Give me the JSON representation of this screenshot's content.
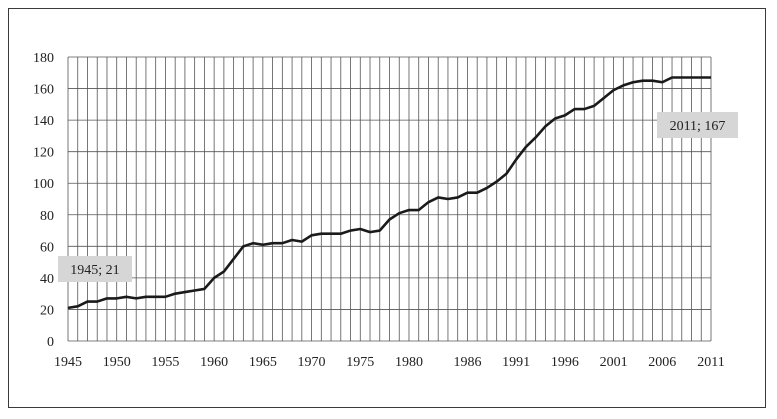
{
  "chart_data": {
    "type": "line",
    "title": "",
    "xlabel": "",
    "ylabel": "",
    "ylim": [
      0,
      180
    ],
    "xlim": [
      1945,
      2011
    ],
    "grid": true,
    "yticks": [
      0,
      20,
      40,
      60,
      80,
      100,
      120,
      140,
      160,
      180
    ],
    "xticks": [
      1945,
      1950,
      1955,
      1960,
      1965,
      1970,
      1975,
      1980,
      1986,
      1991,
      1996,
      2001,
      2006,
      2011
    ],
    "x": [
      1945,
      1946,
      1947,
      1948,
      1949,
      1950,
      1951,
      1952,
      1953,
      1954,
      1955,
      1956,
      1957,
      1958,
      1959,
      1960,
      1961,
      1962,
      1963,
      1964,
      1965,
      1966,
      1967,
      1968,
      1969,
      1970,
      1971,
      1972,
      1973,
      1974,
      1975,
      1976,
      1977,
      1978,
      1979,
      1980,
      1981,
      1982,
      1983,
      1984,
      1985,
      1986,
      1987,
      1988,
      1989,
      1990,
      1991,
      1992,
      1993,
      1994,
      1995,
      1996,
      1997,
      1998,
      1999,
      2000,
      2001,
      2002,
      2003,
      2004,
      2005,
      2006,
      2007,
      2008,
      2009,
      2010,
      2011
    ],
    "series": [
      {
        "values": [
          21,
          22,
          25,
          25,
          27,
          27,
          28,
          27,
          28,
          28,
          28,
          30,
          31,
          32,
          33,
          40,
          44,
          52,
          60,
          62,
          61,
          62,
          62,
          64,
          63,
          67,
          68,
          68,
          68,
          70,
          71,
          69,
          70,
          77,
          81,
          83,
          83,
          88,
          91,
          90,
          91,
          94,
          94,
          97,
          101,
          106,
          115,
          123,
          129,
          136,
          141,
          143,
          147,
          147,
          149,
          154,
          159,
          162,
          164,
          165,
          165,
          164,
          167,
          167,
          167,
          167,
          167
        ]
      }
    ],
    "annotations": [
      {
        "text": "1945; 21",
        "x": 1945,
        "y": 21
      },
      {
        "text": "2011; 167",
        "x": 2011,
        "y": 167
      }
    ],
    "colors": {
      "line": "#1a1a1a",
      "grid": "#555555",
      "label_bg": "#d6d6d6"
    }
  }
}
